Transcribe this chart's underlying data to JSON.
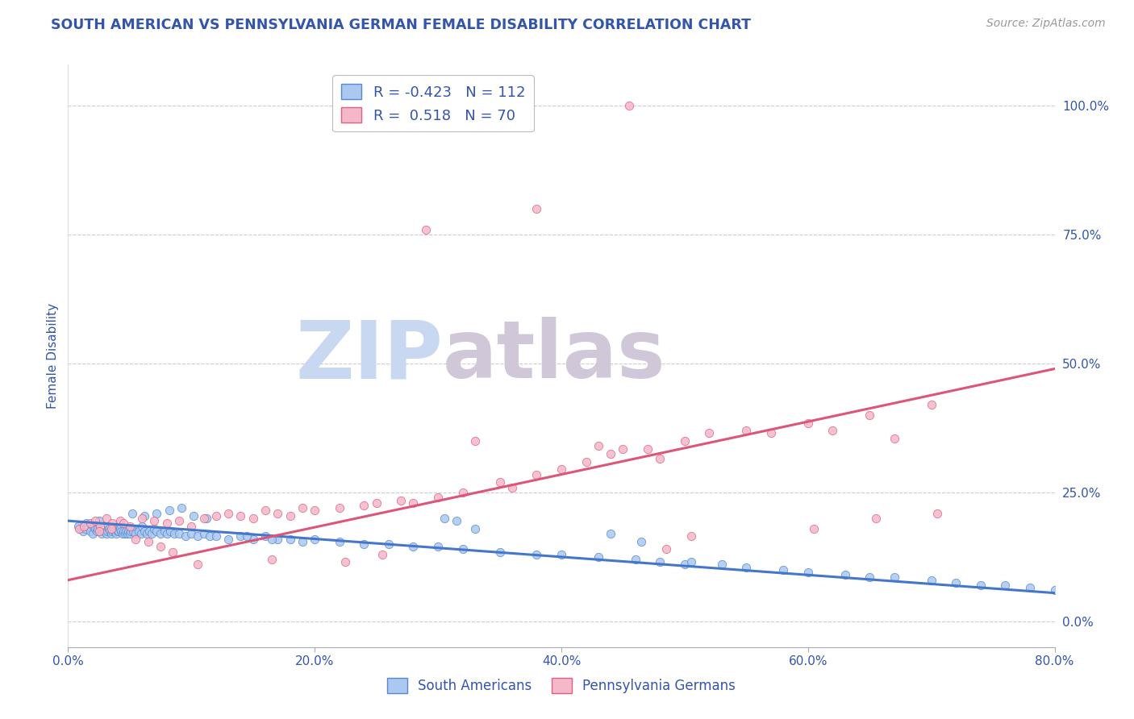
{
  "title": "SOUTH AMERICAN VS PENNSYLVANIA GERMAN FEMALE DISABILITY CORRELATION CHART",
  "source": "Source: ZipAtlas.com",
  "xlabel_vals": [
    0.0,
    20.0,
    40.0,
    60.0,
    80.0
  ],
  "ylabel_vals": [
    0.0,
    25.0,
    50.0,
    75.0,
    100.0
  ],
  "xmin": 0.0,
  "xmax": 80.0,
  "ymin": -5.0,
  "ymax": 108.0,
  "blue_R": "-0.423",
  "blue_N": "112",
  "pink_R": "0.518",
  "pink_N": "70",
  "blue_color": "#aac8f0",
  "pink_color": "#f5b8ca",
  "blue_edge_color": "#5588cc",
  "pink_edge_color": "#e06080",
  "blue_line_color": "#4477cc",
  "pink_line_color": "#dd5577",
  "blue_label": "South Americans",
  "pink_label": "Pennsylvania Germans",
  "title_color": "#3355aa",
  "axis_label_color": "#3355aa",
  "tick_color": "#3355aa",
  "watermark_zip_color": "#c8d8f0",
  "watermark_atlas_color": "#d0c8d8",
  "background_color": "#ffffff",
  "grid_color": "#cccccc",
  "blue_scatter_x": [
    0.8,
    1.0,
    1.2,
    1.4,
    1.5,
    1.6,
    1.8,
    2.0,
    2.1,
    2.2,
    2.3,
    2.4,
    2.5,
    2.6,
    2.7,
    2.8,
    2.9,
    3.0,
    3.1,
    3.2,
    3.3,
    3.4,
    3.5,
    3.6,
    3.7,
    3.8,
    3.9,
    4.0,
    4.1,
    4.2,
    4.3,
    4.4,
    4.5,
    4.6,
    4.7,
    4.8,
    4.9,
    5.0,
    5.1,
    5.2,
    5.3,
    5.5,
    5.7,
    5.9,
    6.0,
    6.2,
    6.4,
    6.6,
    6.8,
    7.0,
    7.2,
    7.5,
    7.8,
    8.0,
    8.3,
    8.6,
    9.0,
    9.5,
    10.0,
    10.5,
    11.0,
    11.5,
    12.0,
    13.0,
    14.0,
    15.0,
    16.0,
    17.0,
    18.0,
    19.0,
    20.0,
    22.0,
    24.0,
    26.0,
    28.0,
    30.0,
    32.0,
    35.0,
    38.0,
    40.0,
    43.0,
    46.0,
    48.0,
    50.0,
    53.0,
    55.0,
    58.0,
    60.0,
    63.0,
    65.0,
    67.0,
    70.0,
    72.0,
    74.0,
    76.0,
    78.0,
    80.0,
    33.0,
    44.0,
    46.5,
    50.5,
    30.5,
    31.5,
    10.2,
    11.2,
    5.2,
    6.2,
    7.2,
    8.2,
    9.2,
    14.5,
    16.5
  ],
  "blue_scatter_y": [
    18.5,
    18.0,
    17.5,
    18.0,
    19.0,
    18.5,
    17.5,
    17.0,
    18.5,
    18.0,
    17.5,
    18.0,
    19.5,
    18.5,
    17.0,
    18.0,
    17.5,
    18.5,
    17.0,
    17.5,
    18.0,
    17.5,
    17.0,
    17.5,
    18.0,
    17.5,
    17.0,
    17.5,
    17.5,
    18.0,
    17.5,
    17.0,
    17.5,
    17.0,
    17.5,
    17.0,
    17.5,
    17.0,
    17.5,
    18.0,
    17.5,
    17.0,
    17.5,
    17.0,
    18.5,
    17.5,
    17.0,
    17.5,
    17.0,
    18.0,
    17.5,
    17.0,
    17.5,
    17.0,
    17.5,
    17.0,
    17.0,
    16.5,
    17.0,
    16.5,
    17.0,
    16.5,
    16.5,
    16.0,
    16.5,
    16.0,
    16.5,
    16.0,
    16.0,
    15.5,
    16.0,
    15.5,
    15.0,
    15.0,
    14.5,
    14.5,
    14.0,
    13.5,
    13.0,
    13.0,
    12.5,
    12.0,
    11.5,
    11.0,
    11.0,
    10.5,
    10.0,
    9.5,
    9.0,
    8.5,
    8.5,
    8.0,
    7.5,
    7.0,
    7.0,
    6.5,
    6.0,
    18.0,
    17.0,
    15.5,
    11.5,
    20.0,
    19.5,
    20.5,
    20.0,
    21.0,
    20.5,
    21.0,
    21.5,
    22.0,
    16.5,
    16.0
  ],
  "pink_scatter_x": [
    0.9,
    1.3,
    1.8,
    2.2,
    2.6,
    3.1,
    3.6,
    4.2,
    5.0,
    6.0,
    7.0,
    8.0,
    9.0,
    10.0,
    11.0,
    12.0,
    13.0,
    14.0,
    15.0,
    16.0,
    17.0,
    18.0,
    19.0,
    20.0,
    22.0,
    24.0,
    25.0,
    27.0,
    28.0,
    30.0,
    32.0,
    35.0,
    38.0,
    40.0,
    42.0,
    44.0,
    45.0,
    47.0,
    48.0,
    50.0,
    52.0,
    55.0,
    57.0,
    60.0,
    62.0,
    65.0,
    67.0,
    70.0,
    2.5,
    3.5,
    4.5,
    5.5,
    6.5,
    7.5,
    8.5,
    38.0,
    16.5,
    10.5,
    22.5,
    25.5,
    48.5,
    50.5,
    60.5,
    65.5,
    70.5,
    45.5,
    29.0,
    33.0,
    36.0,
    43.0
  ],
  "pink_scatter_y": [
    18.0,
    18.5,
    19.0,
    19.5,
    18.5,
    20.0,
    19.0,
    19.5,
    18.5,
    20.0,
    19.5,
    19.0,
    19.5,
    18.5,
    20.0,
    20.5,
    21.0,
    20.5,
    20.0,
    21.5,
    21.0,
    20.5,
    22.0,
    21.5,
    22.0,
    22.5,
    23.0,
    23.5,
    23.0,
    24.0,
    25.0,
    27.0,
    28.5,
    29.5,
    31.0,
    32.5,
    33.5,
    33.5,
    31.5,
    35.0,
    36.5,
    37.0,
    36.5,
    38.5,
    37.0,
    40.0,
    35.5,
    42.0,
    17.5,
    18.0,
    19.0,
    16.0,
    15.5,
    14.5,
    13.5,
    80.0,
    12.0,
    11.0,
    11.5,
    13.0,
    14.0,
    16.5,
    18.0,
    20.0,
    21.0,
    100.0,
    76.0,
    35.0,
    26.0,
    34.0
  ],
  "blue_trend_x": [
    0.0,
    80.0
  ],
  "blue_trend_y": [
    19.5,
    5.5
  ],
  "pink_trend_x": [
    0.0,
    80.0
  ],
  "pink_trend_y": [
    8.0,
    49.0
  ]
}
